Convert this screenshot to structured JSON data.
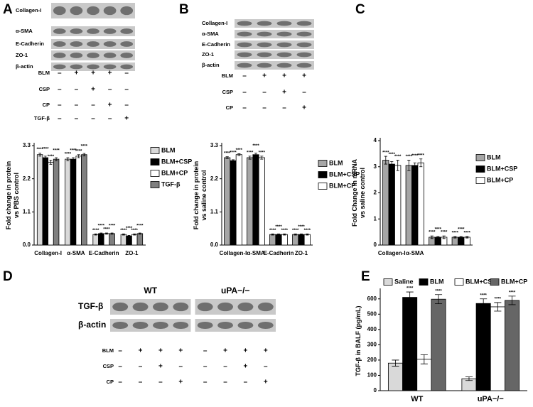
{
  "blots": [
    {
      "panel": "A",
      "rows": [
        "Collagen-I",
        "α-SMA",
        "E-Cadherin",
        "ZO-1",
        "β-actin"
      ],
      "treatments": [
        {
          "name": "BLM",
          "signs": [
            "–",
            "+",
            "+",
            "+",
            "–"
          ]
        },
        {
          "name": "CSP",
          "signs": [
            "–",
            "–",
            "+",
            "–",
            "–"
          ]
        },
        {
          "name": "CP",
          "signs": [
            "–",
            "–",
            "–",
            "+",
            "–"
          ]
        },
        {
          "name": "TGF-β",
          "signs": [
            "–",
            "–",
            "–",
            "–",
            "+"
          ]
        }
      ]
    },
    {
      "panel": "B",
      "rows": [
        "Collagen-I",
        "α-SMA",
        "E-Cadherin",
        "ZO-1",
        "β-actin"
      ],
      "treatments": [
        {
          "name": "BLM",
          "signs": [
            "–",
            "+",
            "+",
            "+"
          ]
        },
        {
          "name": "CSP",
          "signs": [
            "–",
            "–",
            "+",
            "–"
          ]
        },
        {
          "name": "CP",
          "signs": [
            "–",
            "–",
            "–",
            "+"
          ]
        }
      ]
    },
    {
      "panel": "D",
      "groups": [
        "WT",
        "uPA−/−"
      ],
      "rows": [
        "TGF-β",
        "β-actin"
      ],
      "treatments": [
        {
          "name": "BLM",
          "signs": [
            "–",
            "+",
            "+",
            "+",
            "–",
            "+",
            "+",
            "+"
          ]
        },
        {
          "name": "CSP",
          "signs": [
            "–",
            "–",
            "+",
            "–",
            "–",
            "–",
            "+",
            "–"
          ]
        },
        {
          "name": "CP",
          "signs": [
            "–",
            "–",
            "–",
            "+",
            "–",
            "–",
            "–",
            "+"
          ]
        }
      ]
    }
  ],
  "chart_data": [
    {
      "type": "bar",
      "ylabel": [
        "Fold change in protein",
        "vs PBS control"
      ],
      "categories": [
        "Collagen-I",
        "α-SMA",
        "E-Cadherin",
        "ZO-1"
      ],
      "ylim": [
        0,
        3.3
      ],
      "yticks": [
        {
          "value": 0,
          "label": "0.0"
        },
        1.1,
        2.2,
        3.3
      ],
      "legend": "right",
      "series": [
        {
          "name": "BLM",
          "color": "#d9d9d9",
          "values": [
            3.0,
            2.85,
            0.35,
            0.35
          ],
          "errors": [
            0.05,
            0.05,
            0.02,
            0.02
          ],
          "annotations": [
            "****",
            "****",
            "****",
            "****"
          ]
        },
        {
          "name": "BLM+CSP",
          "color": "#000000",
          "values": [
            2.9,
            2.85,
            0.38,
            0.3
          ],
          "errors": [
            0.05,
            0.05,
            0.02,
            0.02
          ],
          "annotations": [
            "****",
            "****",
            "****",
            "****"
          ]
        },
        {
          "name": "BLM+CP",
          "color": "#ffffff",
          "values": [
            2.75,
            2.95,
            0.38,
            0.35
          ],
          "errors": [
            0.07,
            0.05,
            0.02,
            0.02
          ],
          "annotations": [
            "****",
            "****",
            "****",
            "****"
          ]
        },
        {
          "name": "TGF-β",
          "color": "#808080",
          "values": [
            2.85,
            3.0,
            0.38,
            0.38
          ],
          "errors": [
            0.05,
            0.04,
            0.02,
            0.02
          ],
          "annotations": [
            "****",
            "****",
            "****",
            "****"
          ]
        }
      ]
    },
    {
      "type": "bar",
      "ylabel": [
        "Fold change in protein",
        "vs saline control"
      ],
      "categories": [
        "Collagen-I",
        "α-SMA",
        "E-Cadherin",
        "ZO-1"
      ],
      "ylim": [
        0,
        3.3
      ],
      "yticks": [
        {
          "value": 0,
          "label": "0.0"
        },
        1.1,
        2.2,
        3.3
      ],
      "legend": "right",
      "series": [
        {
          "name": "BLM",
          "color": "#a6a6a6",
          "values": [
            2.9,
            2.9,
            0.35,
            0.35
          ],
          "errors": [
            0.03,
            0.05,
            0.02,
            0.02
          ],
          "annotations": [
            "****",
            "****",
            "****",
            "****"
          ]
        },
        {
          "name": "BLM+CSP",
          "color": "#000000",
          "values": [
            2.8,
            3.0,
            0.35,
            0.35
          ],
          "errors": [
            0.03,
            0.05,
            0.02,
            0.02
          ],
          "annotations": [
            "****",
            "****",
            "****",
            "****"
          ]
        },
        {
          "name": "BLM+CP",
          "color": "#ffffff",
          "values": [
            3.0,
            2.9,
            0.35,
            0.35
          ],
          "errors": [
            0.03,
            0.05,
            0.02,
            0.02
          ],
          "annotations": [
            "****",
            "****",
            "****",
            "****"
          ]
        }
      ]
    },
    {
      "type": "bar",
      "panel": "C",
      "ylabel": [
        "Fold Change in mRNA",
        "vs saline control"
      ],
      "categories": [
        "Collagen-I",
        "α-SMA",
        null,
        null
      ],
      "ylim": [
        0,
        4
      ],
      "yticks": [
        0,
        1,
        2,
        3,
        4
      ],
      "legend": "right",
      "series": [
        {
          "name": "BLM",
          "color": "#a6a6a6",
          "values": [
            3.25,
            3.05,
            0.3,
            0.3
          ],
          "errors": [
            0.15,
            0.2,
            0.05,
            0.03
          ],
          "annotations": [
            "****",
            "****",
            "****",
            "****"
          ]
        },
        {
          "name": "BLM+CSP",
          "color": "#000000",
          "values": [
            3.1,
            3.05,
            0.3,
            0.3
          ],
          "errors": [
            0.1,
            0.1,
            0.03,
            0.03
          ],
          "annotations": [
            "****",
            "****",
            "****",
            "****"
          ]
        },
        {
          "name": "BLM+CP",
          "color": "#ffffff",
          "values": [
            3.05,
            3.15,
            0.3,
            0.3
          ],
          "errors": [
            0.2,
            0.15,
            0.05,
            0.03
          ],
          "annotations": [
            "****",
            "****",
            "****",
            "****"
          ]
        }
      ]
    },
    {
      "type": "bar",
      "panel": "E",
      "ylabel": [
        "TGF-β in BALF (pg/mL)"
      ],
      "categories": [
        "WT",
        "uPA−/−"
      ],
      "ylim": [
        0,
        650
      ],
      "yticks": [
        0,
        100,
        200,
        300,
        400,
        500,
        600
      ],
      "legend": "top",
      "series": [
        {
          "name": "Saline",
          "color": "#d9d9d9",
          "values": [
            180,
            78
          ],
          "errors": [
            20,
            12
          ],
          "annotations": [
            null,
            null
          ]
        },
        {
          "name": "BLM",
          "color": "#000000",
          "values": [
            610,
            570
          ],
          "errors": [
            35,
            30
          ],
          "annotations": [
            "****",
            "****"
          ]
        },
        {
          "name": "BLM+CSP",
          "color": "#ffffff",
          "values": [
            205,
            548
          ],
          "errors": [
            30,
            28
          ],
          "annotations": [
            null,
            "****"
          ]
        },
        {
          "name": "BLM+CP",
          "color": "#666666",
          "values": [
            598,
            590
          ],
          "errors": [
            30,
            28
          ],
          "annotations": [
            "****",
            "****"
          ]
        }
      ]
    }
  ]
}
